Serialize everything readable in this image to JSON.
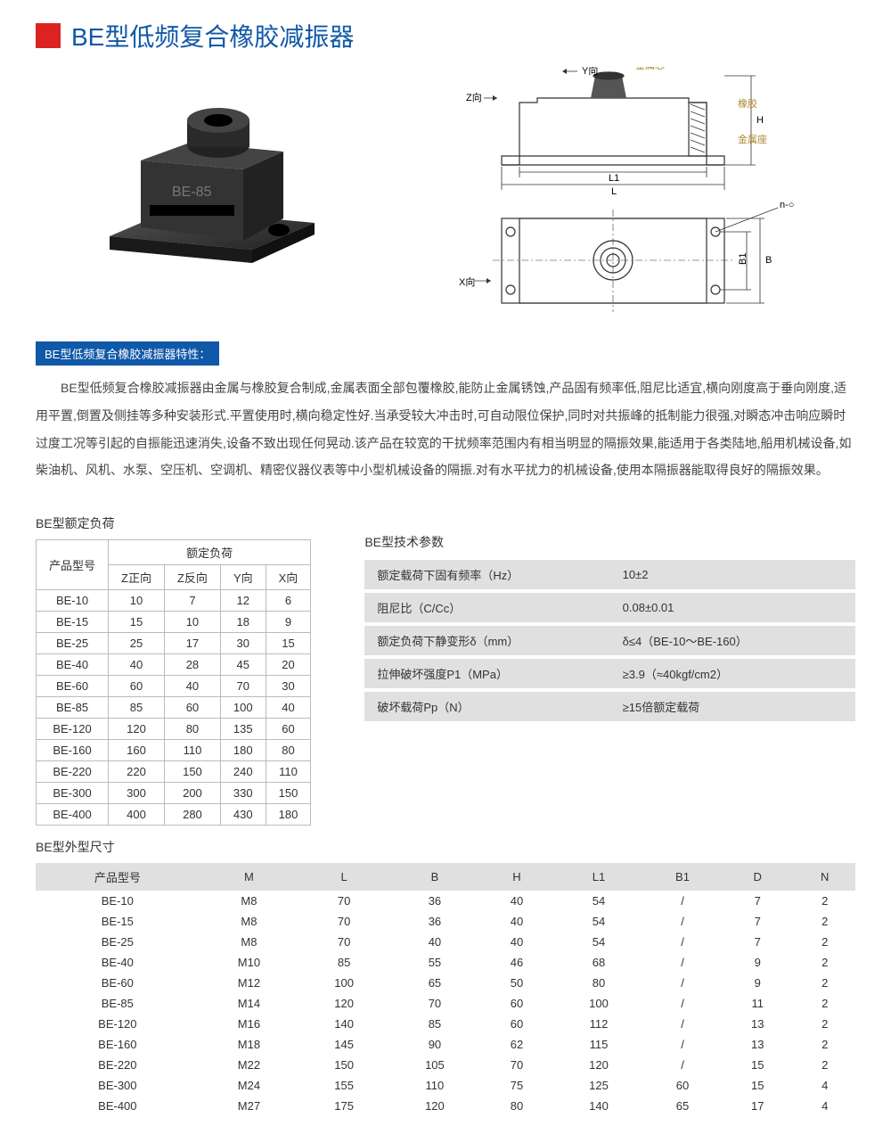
{
  "title": "BE型低频复合橡胶减振器",
  "feature_header": "BE型低频复合橡胶减振器特性：",
  "description": "BE型低频复合橡胶减振器由金属与橡胶复合制成,金属表面全部包覆橡胶,能防止金属锈蚀,产品固有频率低,阻尼比适宜,横向刚度高于垂向刚度,适用平置,倒置及侧挂等多种安装形式.平置使用时,横向稳定性好.当承受较大冲击时,可自动限位保护,同时对共振峰的抵制能力很强,对瞬态冲击响应瞬时过度工况等引起的自振能迅速消失,设备不致出现任何晃动.该产品在较宽的干扰频率范围内有相当明显的隔振效果,能适用于各类陆地,船用机械设备,如柴油机、风机、水泵、空压机、空调机、精密仪器仪表等中小型机械设备的隔振.对有水平扰力的机械设备,使用本隔振器能取得良好的隔振效果。",
  "diagram_labels": {
    "z": "Z向",
    "y": "Y向",
    "x": "X向",
    "metal_top": "金属芯",
    "rubber": "橡胶",
    "metal_base": "金属座",
    "L": "L",
    "L1": "L1",
    "H": "H",
    "B": "B",
    "B1": "B1",
    "nD": "n-○"
  },
  "load_section_title": "BE型额定负荷",
  "load_table": {
    "col_model": "产品型号",
    "col_load": "额定负荷",
    "sub_cols": [
      "Z正向",
      "Z反向",
      "Y向",
      "X向"
    ],
    "rows": [
      [
        "BE-10",
        "10",
        "7",
        "12",
        "6"
      ],
      [
        "BE-15",
        "15",
        "10",
        "18",
        "9"
      ],
      [
        "BE-25",
        "25",
        "17",
        "30",
        "15"
      ],
      [
        "BE-40",
        "40",
        "28",
        "45",
        "20"
      ],
      [
        "BE-60",
        "60",
        "40",
        "70",
        "30"
      ],
      [
        "BE-85",
        "85",
        "60",
        "100",
        "40"
      ],
      [
        "BE-120",
        "120",
        "80",
        "135",
        "60"
      ],
      [
        "BE-160",
        "160",
        "110",
        "180",
        "80"
      ],
      [
        "BE-220",
        "220",
        "150",
        "240",
        "110"
      ],
      [
        "BE-300",
        "300",
        "200",
        "330",
        "150"
      ],
      [
        "BE-400",
        "400",
        "280",
        "430",
        "180"
      ]
    ]
  },
  "param_section_title": "BE型技术参数",
  "param_table": {
    "rows": [
      [
        "额定载荷下固有频率（Hz）",
        "10±2"
      ],
      [
        "阻尼比（C/Cc）",
        "0.08±0.01"
      ],
      [
        "额定负荷下静变形δ（mm）",
        "δ≤4（BE-10～BE-160）"
      ],
      [
        "拉伸破坏强度P1（MPa）",
        "≥3.9（≈40kgf/cm2）"
      ],
      [
        "破坏载荷Pp（N）",
        "≥15倍额定载荷"
      ]
    ]
  },
  "dim_section_title": "BE型外型尺寸",
  "dim_table": {
    "cols": [
      "产品型号",
      "M",
      "L",
      "B",
      "H",
      "L1",
      "B1",
      "D",
      "N"
    ],
    "rows": [
      [
        "BE-10",
        "M8",
        "70",
        "36",
        "40",
        "54",
        "/",
        "7",
        "2"
      ],
      [
        "BE-15",
        "M8",
        "70",
        "36",
        "40",
        "54",
        "/",
        "7",
        "2"
      ],
      [
        "BE-25",
        "M8",
        "70",
        "40",
        "40",
        "54",
        "/",
        "7",
        "2"
      ],
      [
        "BE-40",
        "M10",
        "85",
        "55",
        "46",
        "68",
        "/",
        "9",
        "2"
      ],
      [
        "BE-60",
        "M12",
        "100",
        "65",
        "50",
        "80",
        "/",
        "9",
        "2"
      ],
      [
        "BE-85",
        "M14",
        "120",
        "70",
        "60",
        "100",
        "/",
        "11",
        "2"
      ],
      [
        "BE-120",
        "M16",
        "140",
        "85",
        "60",
        "112",
        "/",
        "13",
        "2"
      ],
      [
        "BE-160",
        "M18",
        "145",
        "90",
        "62",
        "115",
        "/",
        "13",
        "2"
      ],
      [
        "BE-220",
        "M22",
        "150",
        "105",
        "70",
        "120",
        "/",
        "15",
        "2"
      ],
      [
        "BE-300",
        "M24",
        "155",
        "110",
        "75",
        "125",
        "60",
        "15",
        "4"
      ],
      [
        "BE-400",
        "M27",
        "175",
        "120",
        "80",
        "140",
        "65",
        "17",
        "4"
      ]
    ]
  }
}
